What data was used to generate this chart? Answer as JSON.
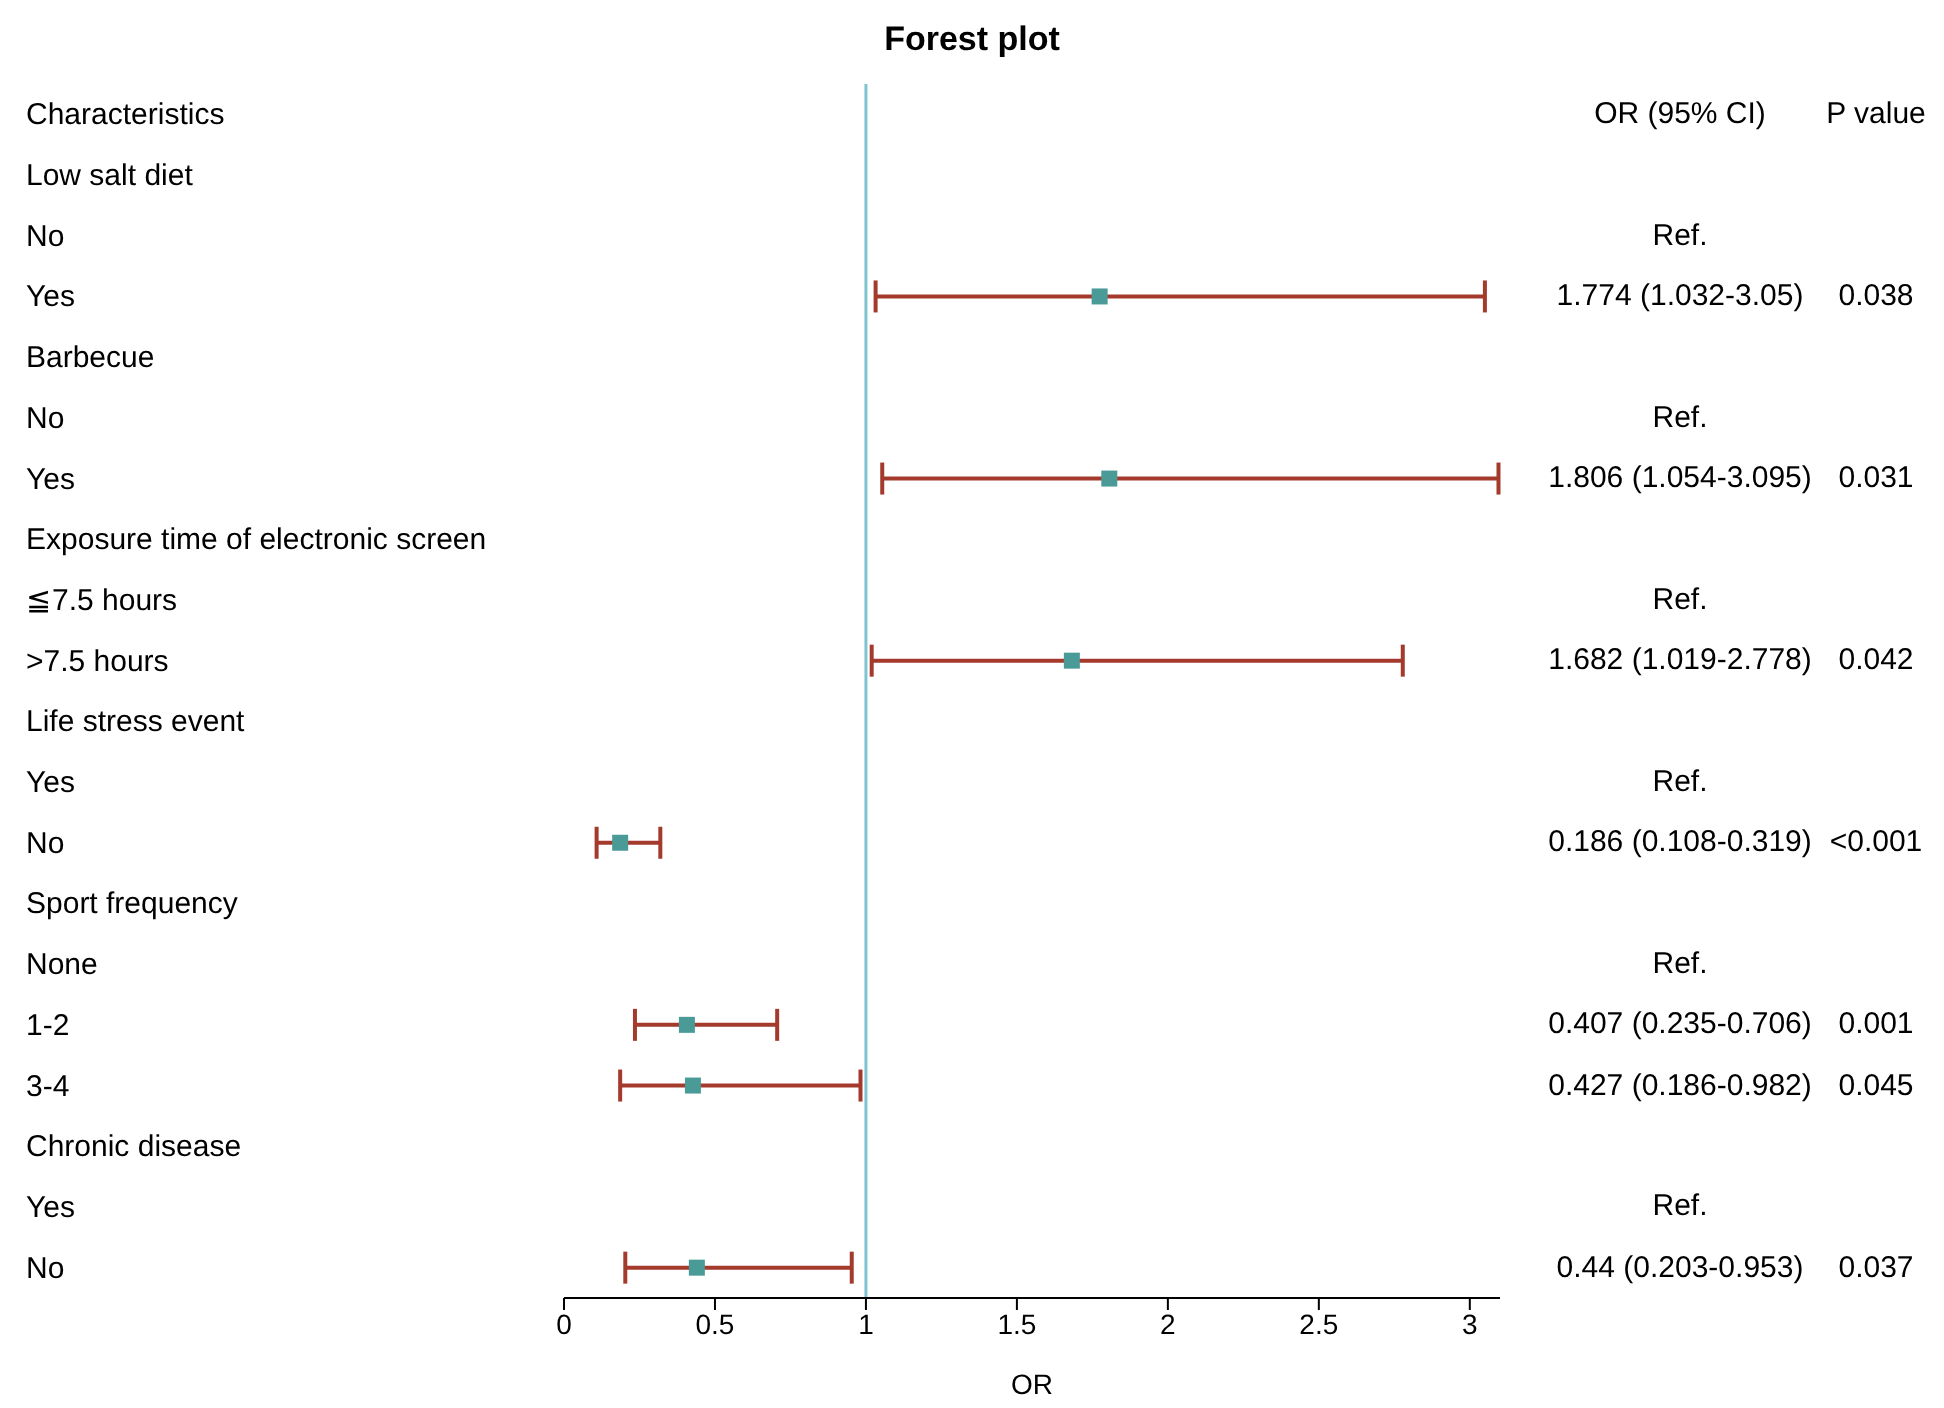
{
  "chart_data": {
    "type": "scatter",
    "title": "Forest plot",
    "xlabel": "OR",
    "categories": [
      "Characteristics",
      "Low salt diet",
      "No",
      "Yes",
      "Barbecue",
      "No",
      "Yes",
      "Exposure time of electronic screen",
      "≦7.5 hours",
      ">7.5 hours",
      "Life stress event",
      "Yes",
      "No",
      "Sport frequency",
      "None",
      "1-2",
      "3-4",
      "Chronic disease",
      "Yes",
      "No"
    ],
    "series": [
      {
        "color": "#4a9a98",
        "values": [
          null,
          null,
          null,
          1.774,
          null,
          null,
          1.806,
          null,
          null,
          1.682,
          null,
          null,
          0.186,
          null,
          null,
          0.407,
          0.427,
          null,
          null,
          0.44
        ],
        "errors": [
          null,
          null,
          null,
          [
            1.032,
            3.05
          ],
          null,
          null,
          [
            1.054,
            3.095
          ],
          null,
          null,
          [
            1.019,
            2.778
          ],
          null,
          null,
          [
            0.108,
            0.319
          ],
          null,
          null,
          [
            0.235,
            0.706
          ],
          [
            0.186,
            0.982
          ],
          null,
          null,
          [
            0.203,
            0.953
          ]
        ],
        "value_labels": [
          null,
          null,
          "Ref.",
          "1.774 (1.032-3.05)",
          null,
          "Ref.",
          "1.806 (1.054-3.095)",
          null,
          "Ref.",
          "1.682 (1.019-2.778)",
          null,
          "Ref.",
          "0.186 (0.108-0.319)",
          null,
          "Ref.",
          "0.407 (0.235-0.706)",
          "0.427 (0.186-0.982)",
          null,
          "Ref.",
          "0.44 (0.203-0.953)"
        ]
      }
    ],
    "orientation": "horizontal",
    "xlim": [
      0,
      3.1
    ],
    "xticks": [
      0,
      0.5,
      1,
      1.5,
      2,
      2.5,
      3
    ],
    "ref_lines": [
      {
        "axis": "x",
        "value": 1,
        "color": "#7fc4d0"
      }
    ],
    "marker": "square",
    "grid": false,
    "annotations": [
      "OR (95% CI)",
      "P value",
      "0.038",
      "0.031",
      "0.042",
      "<0.001",
      "0.001",
      "0.045",
      "0.037"
    ]
  }
}
